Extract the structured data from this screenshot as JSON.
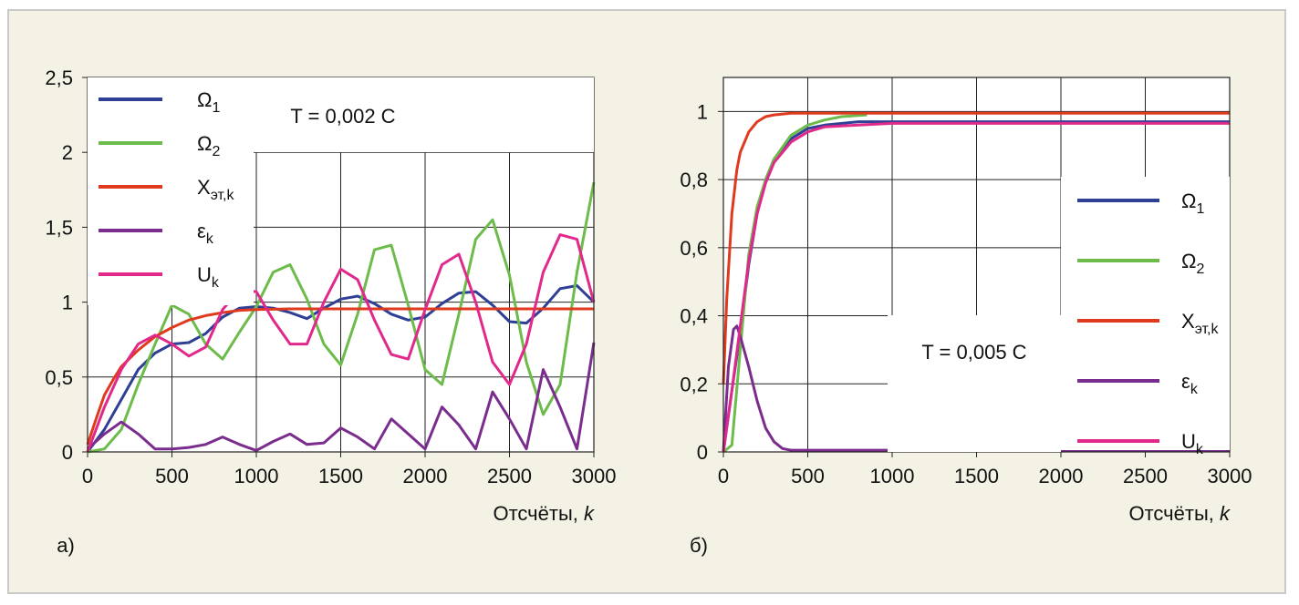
{
  "chart_data": [
    {
      "type": "line",
      "panel_label": "а)",
      "xlabel": "Отсчёты, ",
      "xlabel_var": "k",
      "xlim": [
        0,
        3000
      ],
      "ylim": [
        0,
        2.5
      ],
      "x_ticks": [
        "0",
        "500",
        "1000",
        "1500",
        "2000",
        "2500",
        "3000"
      ],
      "y_ticks": [
        "0",
        "0,5",
        "1",
        "1,5",
        "2",
        "2,5"
      ],
      "grid": true,
      "annotation": "T = 0,002 C",
      "legend_position": "top-left",
      "series": [
        {
          "name": "Ω",
          "sub": "1",
          "color": "#2e3f95",
          "x": [
            0,
            100,
            200,
            300,
            400,
            500,
            600,
            700,
            800,
            900,
            1000,
            1100,
            1200,
            1300,
            1400,
            1500,
            1600,
            1700,
            1800,
            1900,
            2000,
            2100,
            2200,
            2300,
            2400,
            2500,
            2600,
            2700,
            2800,
            2900,
            3000
          ],
          "y": [
            0,
            0.15,
            0.35,
            0.55,
            0.66,
            0.72,
            0.73,
            0.79,
            0.9,
            0.96,
            0.97,
            0.96,
            0.93,
            0.89,
            0.96,
            1.02,
            1.04,
            0.99,
            0.92,
            0.88,
            0.9,
            0.99,
            1.06,
            1.07,
            0.98,
            0.87,
            0.86,
            0.96,
            1.09,
            1.11,
            1.0
          ]
        },
        {
          "name": "Ω",
          "sub": "2",
          "color": "#6dbb4a",
          "x": [
            0,
            100,
            200,
            300,
            400,
            500,
            600,
            700,
            800,
            900,
            1000,
            1100,
            1200,
            1300,
            1400,
            1500,
            1600,
            1700,
            1800,
            1900,
            2000,
            2100,
            2200,
            2300,
            2400,
            2500,
            2600,
            2700,
            2800,
            2900,
            3000
          ],
          "y": [
            0,
            0.02,
            0.15,
            0.45,
            0.72,
            0.98,
            0.92,
            0.72,
            0.62,
            0.8,
            0.97,
            1.2,
            1.25,
            1.02,
            0.72,
            0.58,
            0.92,
            1.35,
            1.38,
            0.98,
            0.55,
            0.45,
            0.92,
            1.42,
            1.55,
            1.18,
            0.6,
            0.25,
            0.45,
            1.2,
            1.8
          ]
        },
        {
          "name": "X",
          "sub": "эт,k",
          "color": "#e03a1e",
          "x": [
            0,
            50,
            100,
            150,
            200,
            300,
            400,
            500,
            600,
            700,
            800,
            900,
            1000,
            1200,
            1500,
            2000,
            2500,
            3000
          ],
          "y": [
            0.05,
            0.22,
            0.38,
            0.48,
            0.57,
            0.68,
            0.77,
            0.83,
            0.88,
            0.91,
            0.93,
            0.945,
            0.95,
            0.955,
            0.955,
            0.955,
            0.955,
            0.955
          ]
        },
        {
          "name": "ε",
          "sub": "k",
          "color": "#7b2d8e",
          "x": [
            0,
            100,
            200,
            300,
            400,
            500,
            600,
            700,
            800,
            900,
            1000,
            1100,
            1200,
            1300,
            1400,
            1500,
            1600,
            1700,
            1800,
            1900,
            2000,
            2100,
            2200,
            2300,
            2400,
            2500,
            2600,
            2700,
            2800,
            2900,
            3000
          ],
          "y": [
            0.02,
            0.12,
            0.2,
            0.12,
            0.02,
            0.02,
            0.03,
            0.05,
            0.1,
            0.05,
            0.01,
            0.07,
            0.12,
            0.05,
            0.06,
            0.16,
            0.1,
            0.02,
            0.22,
            0.12,
            0.02,
            0.3,
            0.18,
            0.02,
            0.4,
            0.22,
            0.02,
            0.55,
            0.3,
            0.02,
            0.73
          ]
        },
        {
          "name": "U",
          "sub": "k",
          "color": "#e0298a",
          "x": [
            0,
            100,
            200,
            300,
            400,
            500,
            600,
            700,
            800,
            900,
            1000,
            1100,
            1200,
            1300,
            1400,
            1500,
            1600,
            1700,
            1800,
            1900,
            2000,
            2100,
            2200,
            2300,
            2400,
            2500,
            2600,
            2700,
            2800,
            2900,
            3000
          ],
          "y": [
            0,
            0.3,
            0.55,
            0.72,
            0.78,
            0.72,
            0.64,
            0.7,
            0.95,
            1.08,
            1.07,
            0.88,
            0.72,
            0.72,
            1.0,
            1.22,
            1.15,
            0.88,
            0.65,
            0.62,
            0.95,
            1.25,
            1.32,
            1.0,
            0.6,
            0.45,
            0.72,
            1.2,
            1.45,
            1.42,
            1.0
          ]
        }
      ]
    },
    {
      "type": "line",
      "panel_label": "б)",
      "xlabel": "Отсчёты, ",
      "xlabel_var": "k",
      "xlim": [
        0,
        3000
      ],
      "ylim": [
        0,
        1.1
      ],
      "x_ticks": [
        "0",
        "500",
        "1000",
        "1500",
        "2000",
        "2500",
        "3000"
      ],
      "y_ticks": [
        "0",
        "0,2",
        "0,4",
        "0,6",
        "0,8",
        "1"
      ],
      "grid": true,
      "annotation": "T = 0,005 C",
      "legend_position": "right",
      "series": [
        {
          "name": "Ω",
          "sub": "1",
          "color": "#2e3f95",
          "x": [
            0,
            50,
            100,
            150,
            200,
            250,
            300,
            400,
            500,
            600,
            800,
            1000,
            1500,
            2000,
            2500,
            3000
          ],
          "y": [
            0,
            0.18,
            0.35,
            0.55,
            0.7,
            0.8,
            0.86,
            0.92,
            0.95,
            0.96,
            0.97,
            0.97,
            0.97,
            0.97,
            0.97,
            0.97
          ]
        },
        {
          "name": "Ω",
          "sub": "2",
          "color": "#6dbb4a",
          "x": [
            0,
            50,
            100,
            150,
            200,
            250,
            300,
            400,
            500,
            600,
            700,
            850
          ],
          "y": [
            0,
            0.02,
            0.3,
            0.58,
            0.72,
            0.8,
            0.86,
            0.93,
            0.96,
            0.975,
            0.985,
            0.99
          ]
        },
        {
          "name": "X",
          "sub": "эт,k",
          "color": "#e03a1e",
          "x": [
            0,
            20,
            50,
            80,
            100,
            150,
            200,
            250,
            300,
            400,
            600,
            1000,
            2000,
            3000
          ],
          "y": [
            0.2,
            0.45,
            0.7,
            0.83,
            0.88,
            0.94,
            0.97,
            0.985,
            0.99,
            0.995,
            0.995,
            0.995,
            0.995,
            0.995
          ]
        },
        {
          "name": "ε",
          "sub": "k",
          "color": "#7b2d8e",
          "x": [
            0,
            30,
            60,
            80,
            100,
            150,
            200,
            250,
            300,
            350,
            400,
            500,
            1000,
            2000,
            3000
          ],
          "y": [
            0,
            0.25,
            0.36,
            0.37,
            0.34,
            0.25,
            0.15,
            0.07,
            0.03,
            0.01,
            0.005,
            0.005,
            0.005,
            0.005,
            0.005
          ]
        },
        {
          "name": "U",
          "sub": "k",
          "color": "#e0298a",
          "x": [
            0,
            50,
            100,
            150,
            200,
            250,
            300,
            400,
            500,
            600,
            800,
            1000,
            1500,
            2000,
            2500,
            3000
          ],
          "y": [
            0,
            0.18,
            0.37,
            0.56,
            0.7,
            0.79,
            0.85,
            0.91,
            0.94,
            0.955,
            0.96,
            0.965,
            0.965,
            0.965,
            0.965,
            0.965
          ]
        }
      ]
    }
  ]
}
